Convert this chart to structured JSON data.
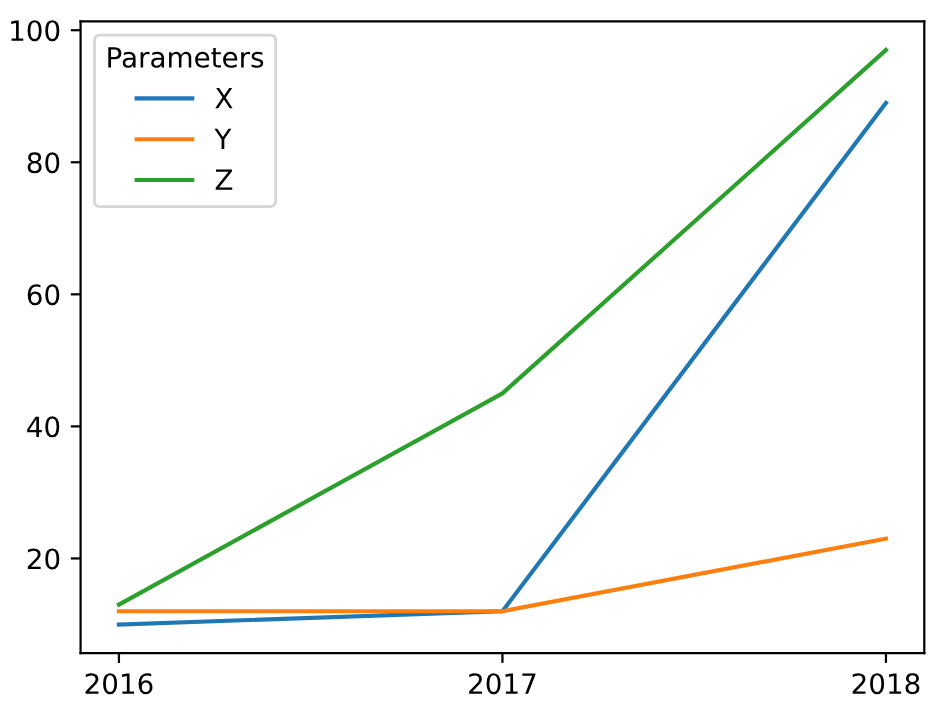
{
  "chart_data": {
    "type": "line",
    "legend_title": "Parameters",
    "x": [
      2016,
      2017,
      2018
    ],
    "series": [
      {
        "name": "X",
        "color": "#1f77b4",
        "values": [
          10,
          12,
          89
        ]
      },
      {
        "name": "Y",
        "color": "#ff7f0e",
        "values": [
          12,
          12,
          23
        ]
      },
      {
        "name": "Z",
        "color": "#2ca02c",
        "values": [
          13,
          45,
          97
        ]
      }
    ],
    "xlim": [
      2015.9,
      2018.1
    ],
    "xticks": [
      2016,
      2017,
      2018
    ],
    "ylim": [
      5.65,
      101.35
    ],
    "yticks": [
      20,
      40,
      60,
      80,
      100
    ],
    "grid": false,
    "legend": "top left",
    "marker": "none",
    "line_style": "solid"
  }
}
